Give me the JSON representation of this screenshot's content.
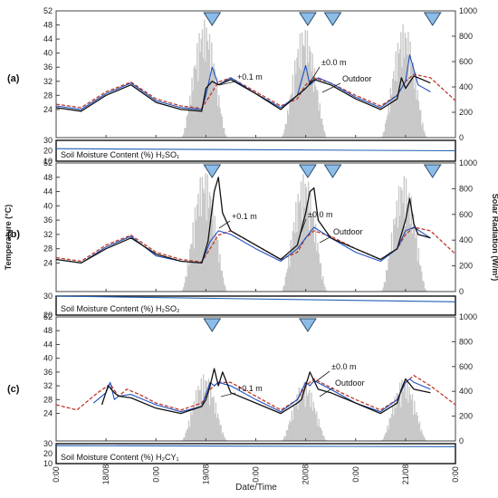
{
  "figure": {
    "y_left_label": "Temperature (°C)",
    "y_right_label": "Solar Radiation (W/m²)",
    "x_label": "Date/Time",
    "x_tick_labels": [
      "0:00",
      "18/08",
      "0:00",
      "19/08",
      "0:00",
      "20/08",
      "0:00",
      "21/08",
      "0:00"
    ],
    "colors": {
      "radiation": "#c8c8c8",
      "outdoor": "#c0392b",
      "plus01": "#1f4fbf",
      "zero": "#111111",
      "moisture": "#1f5fb5",
      "marker_fill": "#8cbde8",
      "marker_stroke": "#2a4a6a"
    }
  },
  "chart_data": [
    {
      "type": "line",
      "panel": "(a)",
      "ylim_left": [
        16,
        52
      ],
      "yticks_left": [
        24,
        28,
        32,
        36,
        40,
        44,
        48,
        52
      ],
      "ylim_right": [
        0,
        1000
      ],
      "yticks_right": [
        0,
        200,
        400,
        600,
        800,
        1000
      ],
      "xlim_hours": [
        0,
        96
      ],
      "annotations": [
        "+0.1 m",
        "±0.0 m",
        "Outdoor"
      ],
      "event_markers_hours": [
        37.5,
        60.5,
        66.5,
        90.5
      ],
      "radiation_days": [
        {
          "start": 30,
          "end": 41,
          "peak": 930
        },
        {
          "start": 54,
          "end": 65,
          "peak": 880
        },
        {
          "start": 78,
          "end": 89,
          "peak": 900
        }
      ],
      "series": [
        {
          "name": "Outdoor",
          "x": [
            0,
            6,
            12,
            18,
            24,
            30,
            35,
            37,
            39,
            42,
            48,
            54,
            58,
            60,
            62,
            66,
            72,
            78,
            82,
            84,
            86,
            90,
            96
          ],
          "y": [
            25.5,
            24.5,
            29,
            31.8,
            27,
            25,
            24.3,
            28,
            31.8,
            33,
            29,
            25,
            27,
            31,
            33,
            31.5,
            28,
            25,
            28,
            32,
            34,
            33,
            26.5
          ]
        },
        {
          "name": "+0.1 m",
          "x": [
            0,
            6,
            12,
            18,
            24,
            30,
            35,
            36,
            37.5,
            39,
            42,
            48,
            54,
            58,
            60,
            61,
            63,
            66,
            72,
            78,
            82,
            84,
            85,
            87,
            90
          ],
          "y": [
            25,
            24,
            28.5,
            31.5,
            26.5,
            24.5,
            24,
            28,
            36,
            31,
            33,
            28.5,
            24.5,
            28,
            36.5,
            31,
            33,
            31.5,
            27.5,
            24.5,
            28,
            32,
            39.5,
            31,
            29
          ]
        },
        {
          "name": "±0.0 m",
          "x": [
            0,
            6,
            12,
            18,
            24,
            30,
            35,
            36,
            37.5,
            39,
            42,
            48,
            54,
            58,
            60,
            62,
            66,
            72,
            78,
            82,
            83,
            84,
            86,
            90
          ],
          "y": [
            24.5,
            23.5,
            28,
            31,
            26,
            24,
            23.5,
            30,
            32,
            31,
            32.5,
            28.5,
            24,
            28,
            30,
            32.5,
            31,
            27,
            24,
            27,
            33,
            30,
            33.5,
            31.5
          ]
        }
      ],
      "soil_moisture": {
        "label": "Soil Moisture Content (%) H₂SO₁",
        "ylim": [
          10,
          30
        ],
        "yticks": [
          10,
          20,
          30
        ],
        "x": [
          0,
          96
        ],
        "y": [
          22,
          20
        ]
      }
    },
    {
      "type": "line",
      "panel": "(b)",
      "ylim_left": [
        16,
        52
      ],
      "yticks_left": [
        24,
        28,
        32,
        36,
        40,
        44,
        48,
        52
      ],
      "ylim_right": [
        0,
        1000
      ],
      "yticks_right": [
        0,
        200,
        400,
        600,
        800,
        1000
      ],
      "xlim_hours": [
        0,
        96
      ],
      "annotations": [
        "+0.1 m",
        "±0.0 m",
        "Outdoor"
      ],
      "event_markers_hours": [
        37.5,
        60.5,
        66.5,
        90.5
      ],
      "radiation_days": [
        {
          "start": 30,
          "end": 41,
          "peak": 950
        },
        {
          "start": 54,
          "end": 65,
          "peak": 920
        },
        {
          "start": 78,
          "end": 89,
          "peak": 910
        }
      ],
      "series": [
        {
          "name": "Outdoor",
          "x": [
            0,
            6,
            12,
            18,
            24,
            30,
            35,
            37,
            39,
            42,
            48,
            54,
            58,
            60,
            62,
            66,
            72,
            78,
            82,
            84,
            86,
            90,
            96
          ],
          "y": [
            25.5,
            24.5,
            29,
            31.8,
            27,
            25,
            24.3,
            28,
            31.8,
            33,
            29,
            25,
            27,
            31,
            33,
            31.5,
            28,
            25,
            28,
            32,
            34,
            33,
            26.5
          ]
        },
        {
          "name": "+0.1 m",
          "x": [
            0,
            6,
            12,
            18,
            24,
            30,
            35,
            37,
            39,
            42,
            48,
            54,
            58,
            60,
            62,
            66,
            72,
            78,
            82,
            84,
            86,
            90
          ],
          "y": [
            25,
            24,
            28.5,
            31.5,
            26,
            24.5,
            24,
            30,
            33,
            32,
            28,
            24.5,
            28,
            31,
            34,
            31,
            27,
            24.5,
            28,
            33,
            34,
            31
          ]
        },
        {
          "name": "±0.0 m",
          "x": [
            0,
            6,
            12,
            18,
            24,
            30,
            35,
            36.5,
            38,
            39,
            40,
            42,
            48,
            54,
            58,
            60,
            61,
            62,
            63,
            66,
            72,
            78,
            82,
            84,
            85,
            86,
            87,
            90
          ],
          "y": [
            25,
            24,
            28,
            31,
            26.5,
            24.5,
            24,
            30,
            44,
            48,
            38,
            33,
            29,
            25,
            29,
            38,
            44,
            45,
            36,
            31,
            28,
            25,
            28,
            36,
            42,
            35,
            32,
            31
          ]
        }
      ],
      "soil_moisture": {
        "label": "Soil Moisture Content (%) H₂SO₂",
        "ylim": [
          20,
          30
        ],
        "yticks": [
          20,
          30
        ],
        "x": [
          0,
          96
        ],
        "y": [
          30,
          27
        ]
      }
    },
    {
      "type": "line",
      "panel": "(c)",
      "ylim_left": [
        16,
        52
      ],
      "yticks_left": [
        24,
        28,
        32,
        36,
        40,
        44,
        48,
        52
      ],
      "ylim_right": [
        0,
        1000
      ],
      "yticks_right": [
        0,
        200,
        400,
        600,
        800,
        1000
      ],
      "xlim_hours": [
        0,
        96
      ],
      "annotations": [
        "+0.1 m",
        "±0.0 m",
        "Outdoor"
      ],
      "event_markers_hours": [
        37.5,
        60.5
      ],
      "radiation_days": [
        {
          "start": 30,
          "end": 41,
          "peak": 540
        },
        {
          "start": 54,
          "end": 65,
          "peak": 480
        },
        {
          "start": 78,
          "end": 89,
          "peak": 510
        }
      ],
      "series": [
        {
          "name": "Outdoor",
          "x": [
            0,
            5,
            10,
            13,
            15,
            17,
            20,
            24,
            30,
            35,
            37,
            39,
            42,
            48,
            54,
            58,
            60,
            62,
            66,
            72,
            78,
            82,
            84,
            86,
            90,
            96
          ],
          "y": [
            26.5,
            25,
            30,
            32.5,
            29,
            31,
            29.5,
            27,
            25,
            27,
            31,
            33,
            33,
            29,
            25,
            28,
            32,
            34,
            31.5,
            28,
            25,
            28,
            33,
            35,
            32,
            26.5
          ]
        },
        {
          "name": "+0.1 m",
          "x": [
            9,
            12,
            13,
            14,
            15,
            18,
            24,
            30,
            35,
            37,
            38,
            39,
            42,
            48,
            54,
            58,
            60,
            61,
            62,
            66,
            72,
            78,
            82,
            84,
            85,
            86,
            90
          ],
          "y": [
            27,
            30,
            33,
            28,
            29,
            29.5,
            26.5,
            24.5,
            26,
            33,
            32,
            33,
            32,
            28,
            24.5,
            28,
            33,
            32,
            33.5,
            31,
            27,
            24.5,
            28,
            33,
            34,
            33,
            31
          ]
        },
        {
          "name": "±0.0 m",
          "x": [
            11,
            12.5,
            14,
            15,
            18,
            24,
            30,
            35,
            36,
            37,
            38,
            39,
            40,
            42,
            48,
            54,
            58,
            59,
            60,
            61,
            63,
            66,
            72,
            78,
            82,
            83,
            84,
            85,
            86,
            90
          ],
          "y": [
            26.5,
            32,
            30,
            29,
            28.5,
            25.5,
            24,
            26,
            28,
            32,
            37,
            32,
            36,
            30,
            27,
            24,
            27,
            28,
            32,
            36,
            31,
            30,
            27,
            24,
            27,
            31,
            34,
            32.5,
            31,
            30
          ]
        }
      ],
      "soil_moisture": {
        "label": "Soil Moisture Content (%) H₂CY₁",
        "ylim": [
          10,
          30
        ],
        "yticks": [
          10,
          20,
          30
        ],
        "x": [
          0,
          96
        ],
        "y": [
          28,
          27
        ]
      }
    }
  ]
}
